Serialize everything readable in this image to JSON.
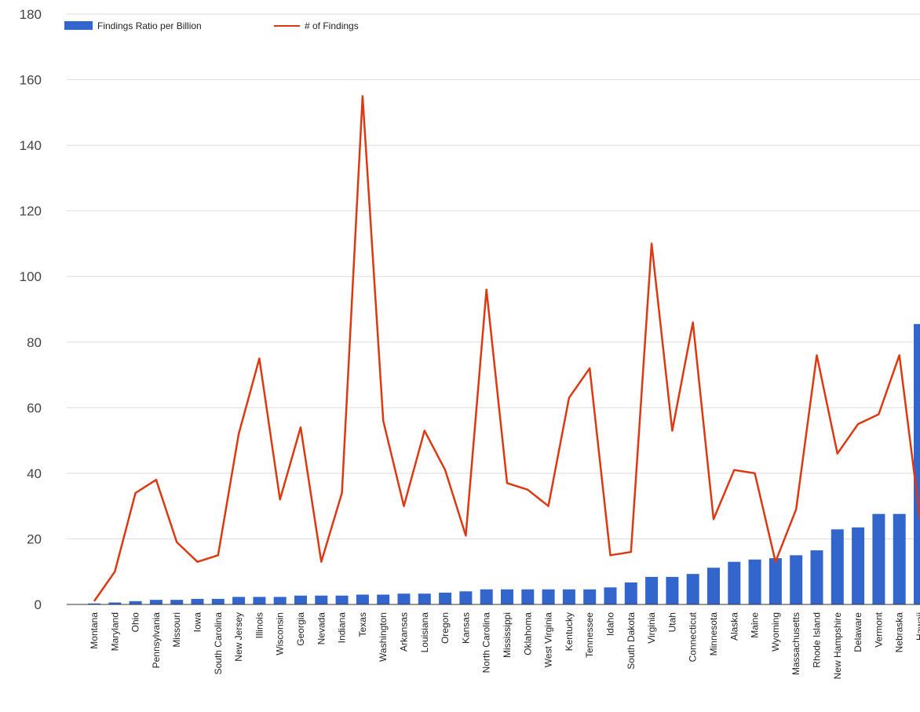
{
  "chart_data": {
    "type": "bar",
    "title": "",
    "xlabel": "",
    "ylabel": "",
    "ylim": [
      0,
      180
    ],
    "yticks": [
      0,
      20,
      40,
      60,
      80,
      100,
      120,
      140,
      160,
      180
    ],
    "grid": true,
    "legend_position": "top-left",
    "categories": [
      "Montana",
      "Maryland",
      "Ohio",
      "Pennsylvania",
      "Missouri",
      "Iowa",
      "South Carolina",
      "New Jersey",
      "Illinois",
      "Wisconsin",
      "Georgia",
      "Nevada",
      "Indiana",
      "Texas",
      "Washington",
      "Arkansas",
      "Louisiana",
      "Oregon",
      "Kansas",
      "North Carolina",
      "Mississippi",
      "Oklahoma",
      "West Virginia",
      "Kentucky",
      "Tennessee",
      "Idaho",
      "South Dakota",
      "Virginia",
      "Utah",
      "Connecticut",
      "Minnesota",
      "Alaska",
      "Maine",
      "Wyoming",
      "Massachusetts",
      "Rhode Island",
      "New Hampshire",
      "Delaware",
      "Vermont",
      "Nebraska",
      "Hawaii"
    ],
    "series": [
      {
        "name": "Findings Ratio per Billion",
        "type": "bar",
        "color": "#3366cc",
        "values": [
          0.3,
          0.6,
          1.0,
          1.4,
          1.4,
          1.7,
          1.7,
          2.3,
          2.3,
          2.3,
          2.7,
          2.7,
          2.7,
          3.0,
          3.0,
          3.3,
          3.3,
          3.6,
          4.0,
          4.6,
          4.6,
          4.6,
          4.6,
          4.6,
          4.6,
          5.2,
          6.7,
          8.4,
          8.4,
          9.3,
          11.2,
          13.0,
          13.7,
          14.1,
          15.0,
          16.5,
          22.9,
          23.5,
          27.6,
          27.6,
          85.5
        ]
      },
      {
        "name": "# of Findings",
        "type": "line",
        "color": "#dc3912",
        "values": [
          1,
          10,
          34,
          38,
          19,
          13,
          15,
          52,
          75,
          32,
          54,
          13,
          34,
          155,
          56,
          30,
          53,
          41,
          21,
          96,
          37,
          35,
          30,
          63,
          72,
          15,
          16,
          110,
          53,
          86,
          26,
          41,
          40,
          13,
          29,
          76,
          46,
          55,
          58,
          76,
          26
        ]
      }
    ]
  }
}
